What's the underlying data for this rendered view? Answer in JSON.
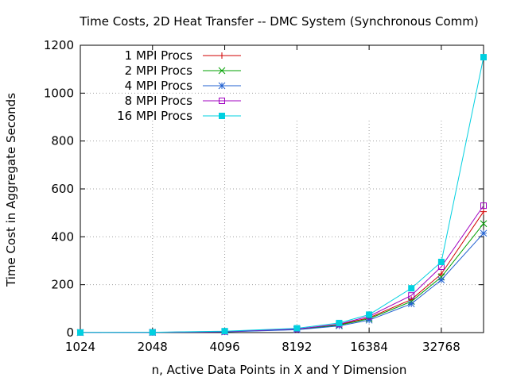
{
  "chart_data": {
    "type": "line",
    "title": "Time Costs, 2D Heat Transfer -- DMC System (Synchronous Comm)",
    "xlabel": "n, Active Data Points in X and Y Dimension",
    "ylabel": "Time Cost in Aggregate Seconds",
    "x_scale": "log2",
    "xlim": [
      1024,
      49152
    ],
    "ylim": [
      0,
      1200
    ],
    "x_ticks": [
      1024,
      2048,
      4096,
      8192,
      16384,
      32768
    ],
    "x_tick_labels": [
      "1024",
      "2048",
      "4096",
      "8192",
      "16384",
      "32768"
    ],
    "y_ticks": [
      0,
      200,
      400,
      600,
      800,
      1000,
      1200
    ],
    "y_tick_labels": [
      "0",
      "200",
      "400",
      "600",
      "800",
      "1000",
      "1200"
    ],
    "grid": true,
    "legend_position": "top-left",
    "x": [
      1024,
      2048,
      4096,
      8192,
      12288,
      16384,
      24576,
      32768,
      49152
    ],
    "series": [
      {
        "name": "1 MPI Procs",
        "color": "#d00000",
        "marker": "plus",
        "values": [
          0.2,
          0.8,
          4,
          14,
          33,
          62,
          138,
          245,
          505
        ]
      },
      {
        "name": "2 MPI Procs",
        "color": "#00a000",
        "marker": "cross",
        "values": [
          0.2,
          0.7,
          3.5,
          13,
          31,
          58,
          130,
          232,
          455
        ]
      },
      {
        "name": "4 MPI Procs",
        "color": "#2060d0",
        "marker": "asterisk",
        "values": [
          0.2,
          0.6,
          3,
          12,
          28,
          52,
          120,
          220,
          415
        ]
      },
      {
        "name": "8 MPI Procs",
        "color": "#a000c0",
        "marker": "open-square",
        "values": [
          0.3,
          0.9,
          4.5,
          15,
          35,
          68,
          155,
          275,
          530
        ]
      },
      {
        "name": "16 MPI Procs",
        "color": "#00d0e0",
        "marker": "filled-square",
        "values": [
          0.4,
          1.2,
          6,
          18,
          40,
          75,
          185,
          295,
          1150
        ]
      }
    ]
  }
}
